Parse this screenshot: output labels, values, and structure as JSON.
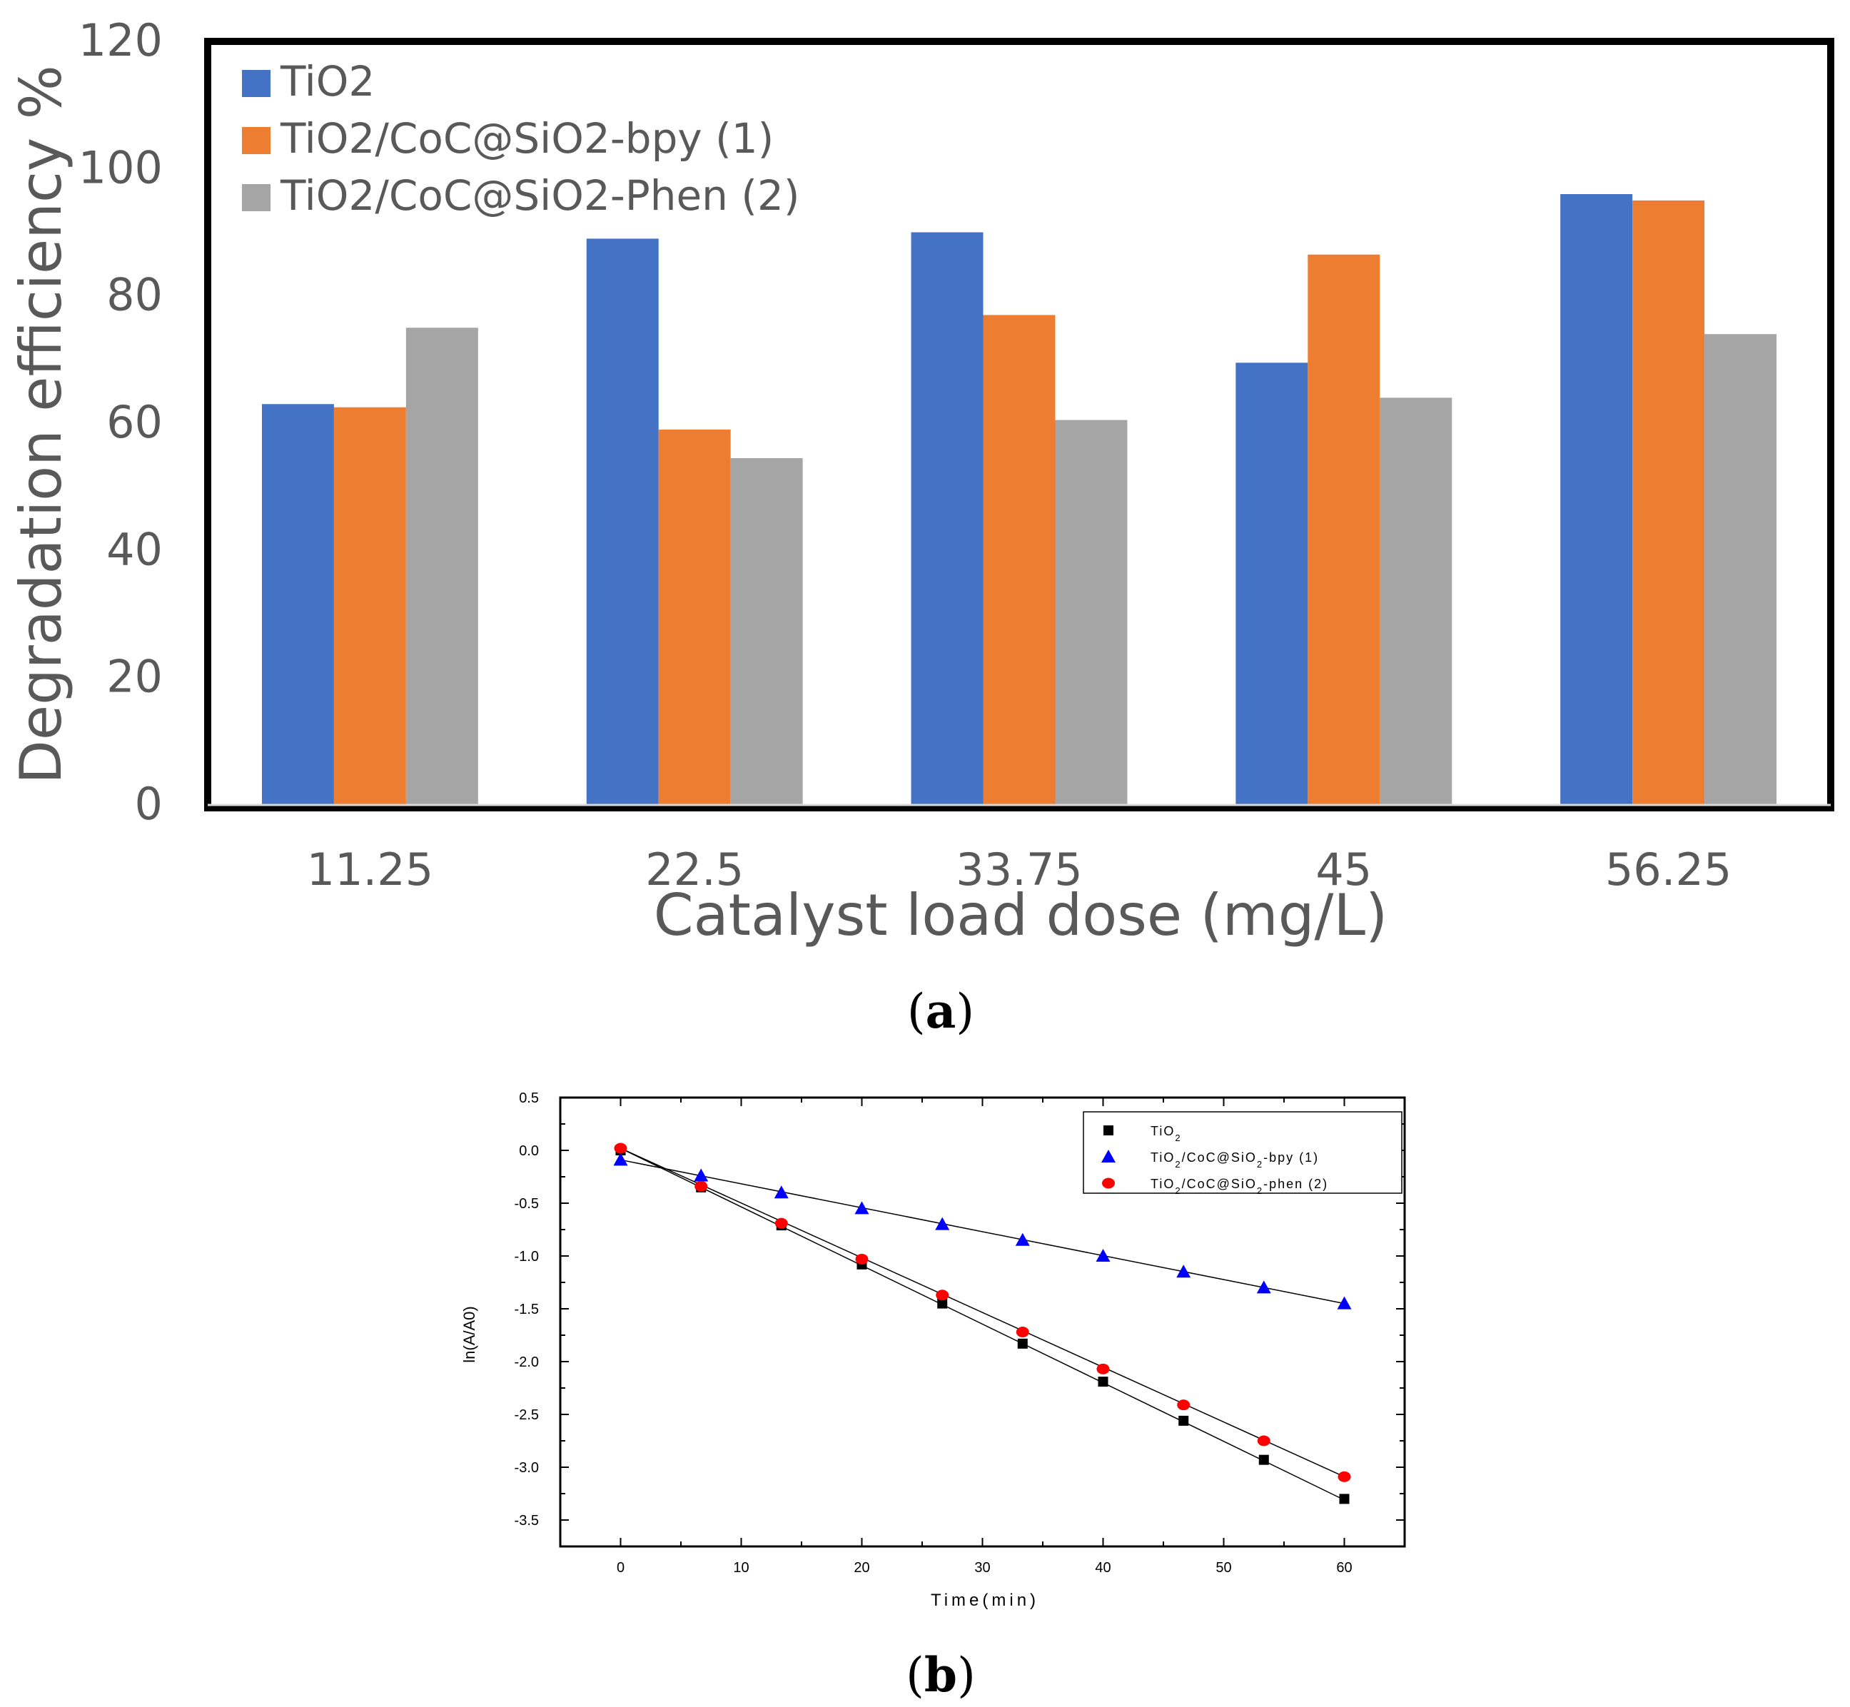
{
  "chart_data": [
    {
      "type": "bar",
      "panel_caption": "a",
      "title": "",
      "xlabel": "Catalyst load dose (mg/L)",
      "ylabel": "Degradation efficiency %",
      "ylim": [
        0,
        120
      ],
      "yticks": [
        "0",
        "20",
        "40",
        "60",
        "80",
        "100",
        "120"
      ],
      "categories": [
        "11.25",
        "22.5",
        "33.75",
        "45",
        "56.25"
      ],
      "series": [
        {
          "name": "TiO2",
          "color": "#4472C4",
          "values": [
            63,
            89,
            90,
            69.5,
            96
          ]
        },
        {
          "name": "TiO2/CoC@SiO2-bpy (1)",
          "color": "#ED7D31",
          "values": [
            62.5,
            59,
            77,
            86.5,
            95
          ]
        },
        {
          "name": "TiO2/CoC@SiO2-Phen (2)",
          "color": "#A5A5A5",
          "values": [
            75,
            54.5,
            60.5,
            64,
            74
          ]
        }
      ],
      "grid": false,
      "legend_position": "top-left"
    },
    {
      "type": "scatter",
      "panel_caption": "b",
      "title": "",
      "xlabel": "Time(min)",
      "ylabel": "ln(A/A0)",
      "xlim": [
        -5,
        65
      ],
      "ylim": [
        -3.75,
        0.5
      ],
      "xticks": [
        "0",
        "10",
        "20",
        "30",
        "40",
        "50",
        "60"
      ],
      "yticks": [
        "0.5",
        "0.0",
        "-0.5",
        "-1.0",
        "-1.5",
        "-2.0",
        "-2.5",
        "-3.0",
        "-3.5"
      ],
      "x": [
        0,
        6.67,
        13.33,
        20,
        26.67,
        33.33,
        40,
        46.67,
        53.33,
        60
      ],
      "series": [
        {
          "name": "TiO2",
          "marker": "square",
          "color": "#000000",
          "values": [
            0.0,
            -0.35,
            -0.71,
            -1.08,
            -1.45,
            -1.83,
            -2.19,
            -2.56,
            -2.93,
            -3.3
          ],
          "fit": [
            0.02,
            -3.31
          ]
        },
        {
          "name": "TiO2/CoC@SiO2-bpy (1)",
          "marker": "triangle",
          "color": "#0000FF",
          "values": [
            -0.09,
            -0.24,
            -0.4,
            -0.55,
            -0.7,
            -0.85,
            -1.0,
            -1.15,
            -1.3,
            -1.45
          ],
          "fit": [
            -0.09,
            -1.45
          ]
        },
        {
          "name": "TiO2/CoC@SiO2-phen (2)",
          "marker": "circle",
          "color": "#FF0000",
          "values": [
            0.02,
            -0.34,
            -0.69,
            -1.03,
            -1.37,
            -1.72,
            -2.07,
            -2.41,
            -2.75,
            -3.09
          ],
          "fit": [
            0.02,
            -3.09
          ]
        }
      ],
      "grid": false,
      "legend_position": "top-right"
    }
  ]
}
